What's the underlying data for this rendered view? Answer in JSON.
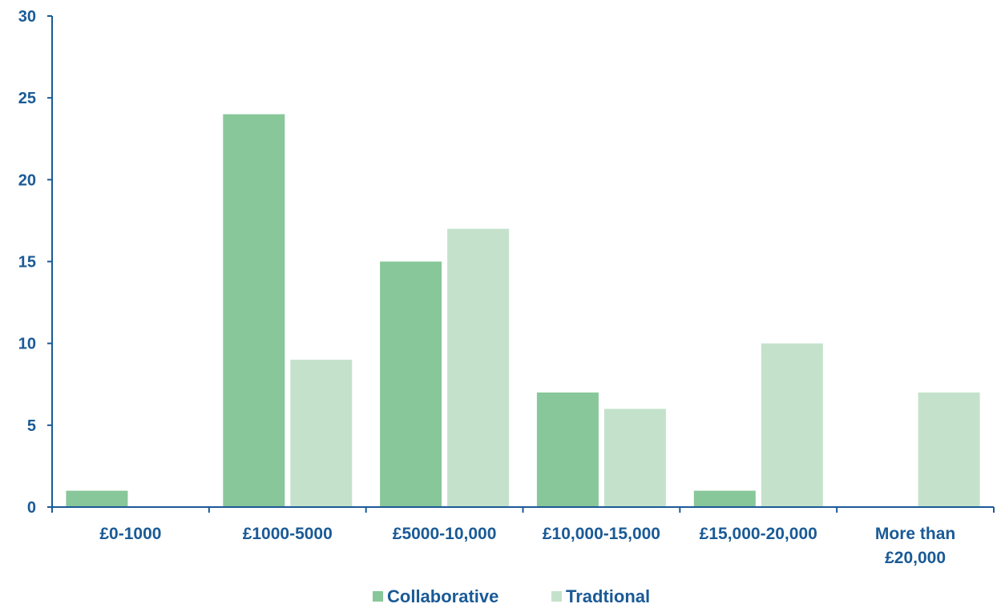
{
  "chart_data": {
    "type": "bar",
    "title": "",
    "xlabel": "",
    "ylabel": "",
    "categories": [
      [
        "£0-1000"
      ],
      [
        "£1000-5000"
      ],
      [
        "£5000-10,000"
      ],
      [
        "£10,000-15,000"
      ],
      [
        "£15,000-20,000"
      ],
      [
        "More than",
        "£20,000"
      ]
    ],
    "series": [
      {
        "name": "Collaborative",
        "color": "#88c799",
        "values": [
          1,
          24,
          15,
          7,
          1,
          0
        ]
      },
      {
        "name": "Tradtional",
        "color": "#c4e2cb",
        "values": [
          0,
          9,
          17,
          6,
          10,
          7
        ]
      }
    ],
    "ylim": [
      0,
      30
    ],
    "yticks": [
      0,
      5,
      10,
      15,
      20,
      25,
      30
    ],
    "grid": false,
    "legend_position": "bottom-center",
    "axis_color": "#1a5a96",
    "label_color": "#1a5a96"
  }
}
